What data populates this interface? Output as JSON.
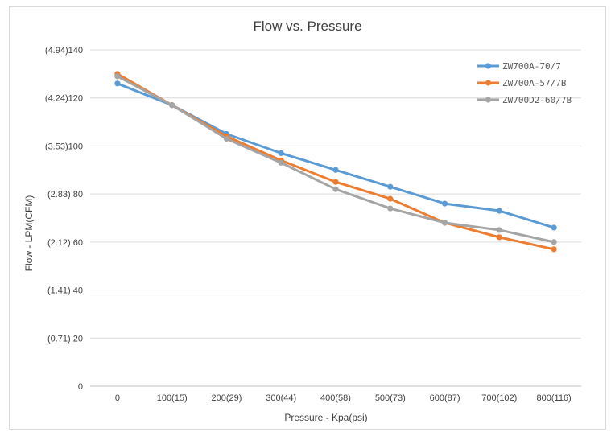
{
  "chart_data": {
    "type": "line",
    "title": "Flow vs. Pressure",
    "xlabel": "Pressure - Kpa(psi)",
    "ylabel": "Flow - LPM(CFM)",
    "categories": [
      "0",
      "100(15)",
      "200(29)",
      "300(44)",
      "400(58)",
      "500(73)",
      "600(87)",
      "700(102)",
      "800(116)"
    ],
    "ylim": [
      0,
      140
    ],
    "yticks": [
      0,
      20,
      40,
      60,
      80,
      100,
      120,
      140
    ],
    "ytick_labels": [
      "0",
      "(0.71) 20",
      "(1.41) 40",
      "(2.12) 60",
      "(2.83) 80",
      "(3.53)100",
      "(4.24)120",
      "(4.94)140"
    ],
    "grid": true,
    "legend_position": "top-right",
    "series": [
      {
        "name": "ZW700A-70/7",
        "color": "#5b9bd5",
        "values": [
          126,
          117,
          105,
          97,
          90,
          83,
          76,
          73,
          66
        ]
      },
      {
        "name": "ZW700A-57/7B",
        "color": "#ed7d31",
        "values": [
          130,
          117,
          104,
          94,
          85,
          78,
          68,
          62,
          57
        ]
      },
      {
        "name": "ZW700D2-60/7B",
        "color": "#a5a5a5",
        "values": [
          129,
          117,
          103,
          93,
          82,
          74,
          68,
          65,
          60
        ]
      }
    ]
  }
}
